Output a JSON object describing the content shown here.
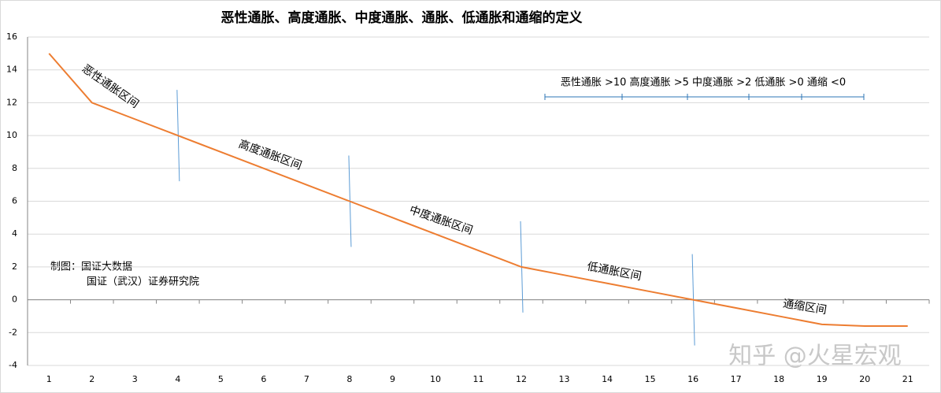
{
  "chart_data": {
    "type": "line",
    "title": "恶性通胀、高度通胀、中度通胀、通胀、低通胀和通缩的定义",
    "categories": [
      "1",
      "2",
      "3",
      "4",
      "5",
      "6",
      "7",
      "8",
      "9",
      "10",
      "11",
      "12",
      "13",
      "14",
      "15",
      "16",
      "17",
      "18",
      "19",
      "20",
      "21"
    ],
    "values": [
      15,
      12,
      11,
      10,
      9,
      8,
      7,
      6,
      5,
      4,
      3,
      2,
      1.5,
      1,
      0.5,
      0,
      -0.5,
      -1,
      -1.5,
      -1.6,
      -1.6
    ],
    "color": "#ed7d31",
    "ylim": [
      -4,
      16
    ],
    "yticks": [
      -4,
      -2,
      0,
      2,
      4,
      6,
      8,
      10,
      12,
      14,
      16
    ],
    "grid": true,
    "annotations": [
      "恶性通胀区间",
      "高度通胀区间",
      "中度通胀区间",
      "低通胀区间",
      "通缩区间"
    ],
    "threshold_note": "恶性通胀 >10 高度通胀 >5 中度通胀 >2 低通胀 >0 通缩 <0",
    "source": [
      "制图：国证大数据",
      "国证（武汉）证券研究院"
    ],
    "watermark": "知乎 @火星宏观"
  }
}
